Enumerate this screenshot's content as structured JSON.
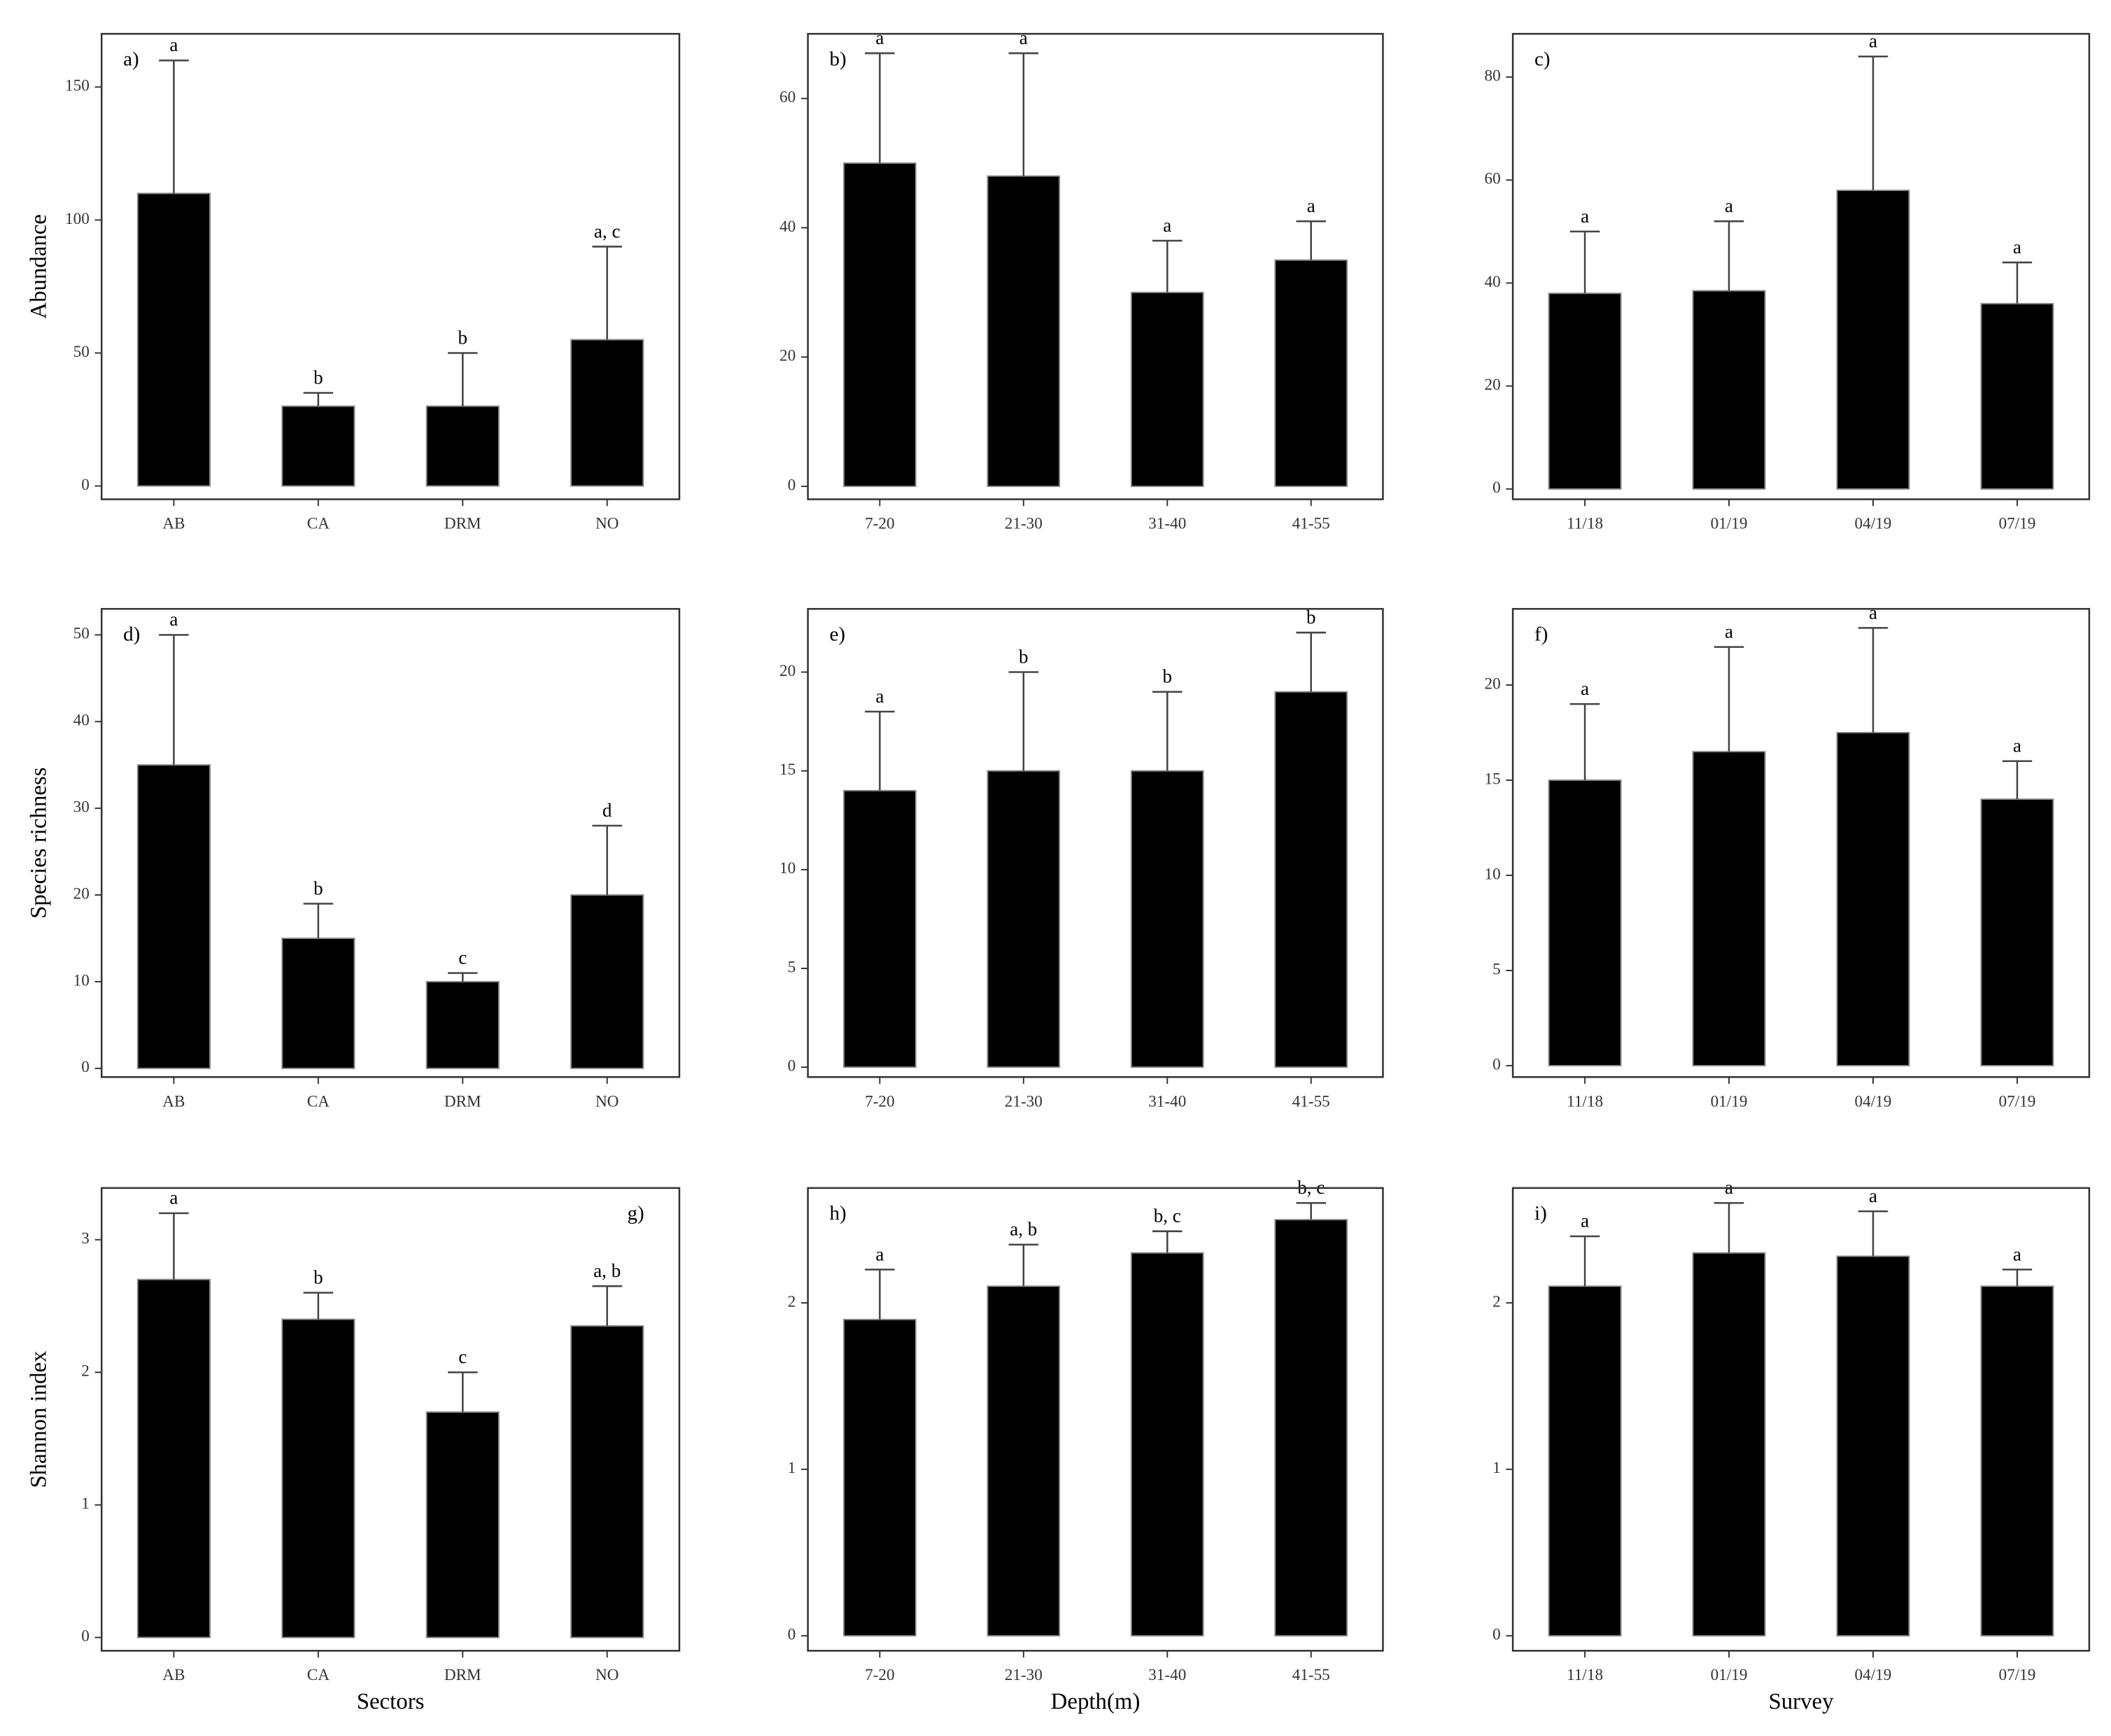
{
  "chart_data": [
    {
      "type": "bar",
      "panel_label": "a)",
      "panel_label_position": "top-left",
      "ylabel": "Abundance",
      "categories": [
        "AB",
        "CA",
        "DRM",
        "NO"
      ],
      "values": [
        110,
        30,
        30,
        55
      ],
      "errors": [
        50,
        5,
        20,
        35
      ],
      "letters": [
        "a",
        "b",
        "b",
        "a, c"
      ],
      "ylim": [
        -5,
        170
      ],
      "yticks": [
        0,
        50,
        100,
        150
      ],
      "color": "#000000"
    },
    {
      "type": "bar",
      "panel_label": "b)",
      "panel_label_position": "top-left",
      "categories": [
        "7-20",
        "21-30",
        "31-40",
        "41-55"
      ],
      "values": [
        50,
        48,
        30,
        35
      ],
      "errors": [
        17,
        19,
        8,
        6
      ],
      "letters": [
        "a",
        "a",
        "a",
        "a"
      ],
      "ylim": [
        -2,
        70
      ],
      "yticks": [
        0,
        20,
        40,
        60
      ],
      "color": "#000000"
    },
    {
      "type": "bar",
      "panel_label": "c)",
      "panel_label_position": "top-left",
      "categories": [
        "11/18",
        "01/19",
        "04/19",
        "07/19"
      ],
      "values": [
        38,
        38.5,
        58,
        36
      ],
      "errors": [
        12,
        13.5,
        26,
        8
      ],
      "letters": [
        "a",
        "a",
        "a",
        "a"
      ],
      "ylim": [
        -2,
        88.4
      ],
      "yticks": [
        0,
        20,
        40,
        60,
        80
      ],
      "color": "#000000"
    },
    {
      "type": "bar",
      "panel_label": "d)",
      "panel_label_position": "top-left",
      "ylabel": "Species richness",
      "categories": [
        "AB",
        "CA",
        "DRM",
        "NO"
      ],
      "values": [
        35,
        15,
        10,
        20
      ],
      "errors": [
        15,
        4,
        1,
        8
      ],
      "letters": [
        "a",
        "b",
        "c",
        "d"
      ],
      "ylim": [
        -1,
        53
      ],
      "yticks": [
        0,
        10,
        20,
        30,
        40,
        50
      ],
      "color": "#000000"
    },
    {
      "type": "bar",
      "panel_label": "e)",
      "panel_label_position": "top-left",
      "categories": [
        "7-20",
        "21-30",
        "31-40",
        "41-55"
      ],
      "values": [
        14,
        15,
        15,
        19
      ],
      "errors": [
        4,
        5,
        4,
        3
      ],
      "letters": [
        "a",
        "b",
        "b",
        "b"
      ],
      "ylim": [
        -0.5,
        23.2
      ],
      "yticks": [
        0,
        5,
        10,
        15,
        20
      ],
      "color": "#000000"
    },
    {
      "type": "bar",
      "panel_label": "f)",
      "panel_label_position": "top-left",
      "categories": [
        "11/18",
        "01/19",
        "04/19",
        "07/19"
      ],
      "values": [
        15,
        16.5,
        17.5,
        14
      ],
      "errors": [
        4,
        5.5,
        5.5,
        2
      ],
      "letters": [
        "a",
        "a",
        "a",
        "a"
      ],
      "ylim": [
        -0.6,
        24
      ],
      "yticks": [
        0,
        5,
        10,
        15,
        20
      ],
      "color": "#000000"
    },
    {
      "type": "bar",
      "panel_label": "g)",
      "panel_label_position": "top-right",
      "ylabel": "Shannon index",
      "xlabel": "Sectors",
      "categories": [
        "AB",
        "CA",
        "DRM",
        "NO"
      ],
      "values": [
        2.7,
        2.4,
        1.7,
        2.35
      ],
      "errors": [
        0.5,
        0.2,
        0.3,
        0.3
      ],
      "letters": [
        "a",
        "b",
        "c",
        "a, b"
      ],
      "ylim": [
        -0.1,
        3.39
      ],
      "yticks": [
        0,
        1,
        2,
        3
      ],
      "color": "#000000"
    },
    {
      "type": "bar",
      "panel_label": "h)",
      "panel_label_position": "top-left",
      "xlabel": "Depth(m)",
      "categories": [
        "7-20",
        "21-30",
        "31-40",
        "41-55"
      ],
      "values": [
        1.9,
        2.1,
        2.3,
        2.5
      ],
      "errors": [
        0.3,
        0.25,
        0.13,
        0.1
      ],
      "letters": [
        "a",
        "a, b",
        "b, c",
        "b, c"
      ],
      "ylim": [
        -0.09,
        2.69
      ],
      "yticks": [
        0,
        1,
        2
      ],
      "color": "#000000"
    },
    {
      "type": "bar",
      "panel_label": "i)",
      "panel_label_position": "top-left",
      "xlabel": "Survey",
      "categories": [
        "11/18",
        "01/19",
        "04/19",
        "07/19"
      ],
      "values": [
        2.1,
        2.3,
        2.28,
        2.1
      ],
      "errors": [
        0.3,
        0.3,
        0.27,
        0.1
      ],
      "letters": [
        "a",
        "a",
        "a",
        "a"
      ],
      "ylim": [
        -0.09,
        2.69
      ],
      "yticks": [
        0,
        1,
        2
      ],
      "color": "#000000"
    }
  ]
}
